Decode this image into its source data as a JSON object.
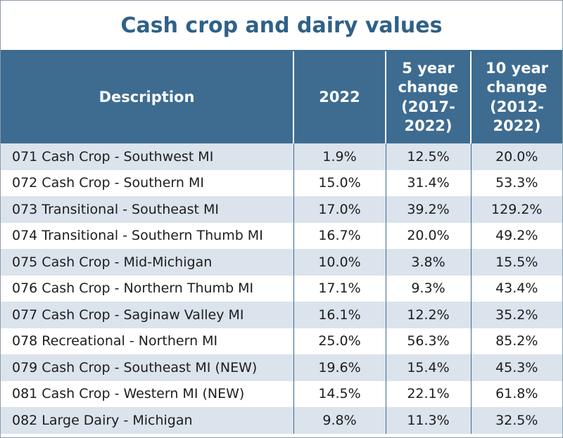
{
  "header": {
    "title": "Cash crop and dairy values"
  },
  "table": {
    "columns": [
      "Description",
      "2022",
      "5 year change (2017-2022)",
      "10 year change (2012-2022)"
    ],
    "rows": [
      [
        "071 Cash Crop - Southwest MI",
        "1.9%",
        "12.5%",
        "20.0%"
      ],
      [
        "072 Cash Crop - Southern MI",
        "15.0%",
        "31.4%",
        "53.3%"
      ],
      [
        "073 Transitional - Southeast MI",
        "17.0%",
        "39.2%",
        "129.2%"
      ],
      [
        "074 Transitional - Southern Thumb MI",
        "16.7%",
        "20.0%",
        "49.2%"
      ],
      [
        "075 Cash Crop - Mid-Michigan",
        "10.0%",
        "3.8%",
        "15.5%"
      ],
      [
        "076 Cash Crop - Northern Thumb MI",
        "17.1%",
        "9.3%",
        "43.4%"
      ],
      [
        "077 Cash Crop - Saginaw Valley MI",
        "16.1%",
        "12.2%",
        "35.2%"
      ],
      [
        "078 Recreational - Northern MI",
        "25.0%",
        "56.3%",
        "85.2%"
      ],
      [
        "079 Cash Crop - Southeast MI (NEW)",
        "19.6%",
        "15.4%",
        "45.3%"
      ],
      [
        "081 Cash Crop - Western MI (NEW)",
        "14.5%",
        "22.1%",
        "61.8%"
      ],
      [
        "082 Large Dairy - Michigan",
        "9.8%",
        "11.3%",
        "32.5%"
      ]
    ]
  }
}
